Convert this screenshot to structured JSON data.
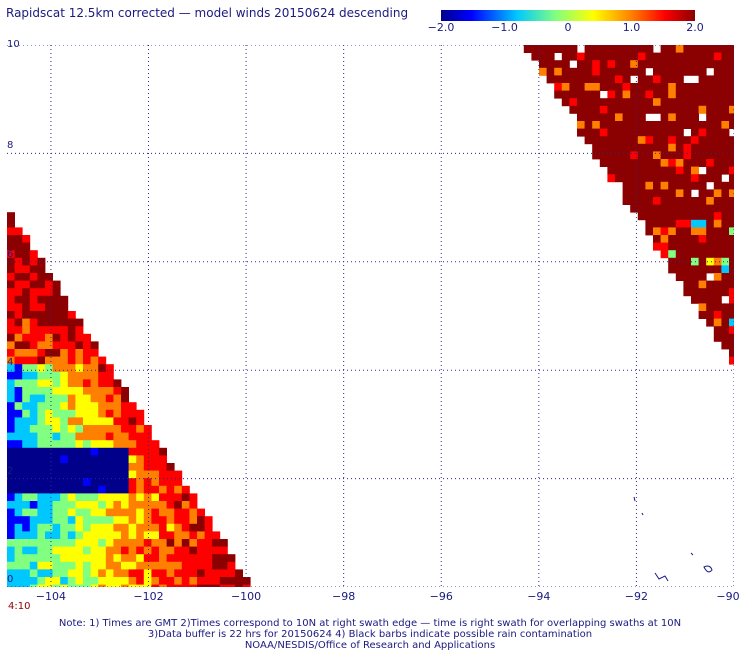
{
  "title": "Rapidscat 12.5km corrected — model winds 20150624 descending",
  "colorbar": {
    "tick_labels": [
      "−2.0",
      "−1.0",
      "0",
      "1.0",
      "2.0"
    ],
    "tick_values": [
      -2.0,
      -1.0,
      0,
      1.0,
      2.0
    ],
    "range": [
      -2.0,
      2.0
    ],
    "colors": [
      "#00008b",
      "#0000ff",
      "#00c8ff",
      "#80ff80",
      "#ffff00",
      "#ff8000",
      "#ff0000",
      "#8b0000"
    ]
  },
  "axes": {
    "lon_labels": [
      "−104",
      "−102",
      "−100",
      "−98",
      "−96",
      "−94",
      "−92",
      "−90"
    ],
    "lon_values": [
      -104,
      -102,
      -100,
      -98,
      -96,
      -94,
      -92,
      -90
    ],
    "lat_labels": [
      "0",
      "2",
      "4",
      "6",
      "8",
      "10"
    ],
    "lat_values": [
      0,
      2,
      4,
      6,
      8,
      10
    ],
    "lon_range": [
      -104.9,
      -90
    ],
    "lat_range": [
      0,
      10
    ]
  },
  "swath_time": "4:10",
  "notes": [
    "Note: 1) Times are GMT 2)Times correspond to 10N at right swath edge — time is right swath for overlapping swaths at 10N",
    "3)Data buffer is 22 hrs for 20150624 4) Black barbs indicate possible rain contamination",
    "NOAA/NESDIS/Office of Research and Applications"
  ]
}
